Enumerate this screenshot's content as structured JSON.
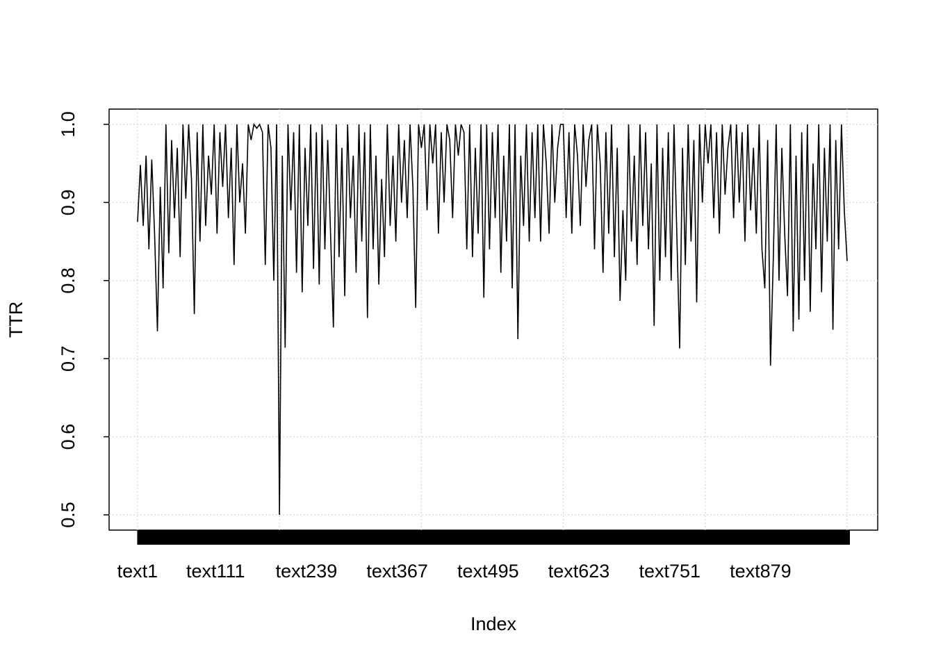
{
  "chart_data": {
    "type": "line",
    "xlabel": "Index",
    "ylabel": "TTR",
    "x": [
      1,
      5,
      9,
      13,
      17,
      21,
      25,
      29,
      33,
      37,
      41,
      45,
      49,
      53,
      57,
      61,
      65,
      69,
      73,
      77,
      81,
      85,
      89,
      93,
      97,
      101,
      105,
      109,
      113,
      117,
      121,
      125,
      129,
      133,
      137,
      141,
      145,
      149,
      153,
      157,
      161,
      165,
      169,
      173,
      177,
      181,
      185,
      189,
      193,
      197,
      201,
      205,
      209,
      213,
      217,
      221,
      225,
      229,
      233,
      237,
      241,
      245,
      249,
      253,
      257,
      261,
      265,
      269,
      273,
      277,
      281,
      285,
      289,
      293,
      297,
      301,
      305,
      309,
      313,
      317,
      321,
      325,
      329,
      333,
      337,
      341,
      345,
      349,
      353,
      357,
      361,
      365,
      369,
      373,
      377,
      381,
      385,
      389,
      393,
      397,
      401,
      405,
      409,
      413,
      417,
      421,
      425,
      429,
      433,
      437,
      441,
      445,
      449,
      453,
      457,
      461,
      465,
      469,
      473,
      477,
      481,
      485,
      489,
      493,
      497,
      501,
      505,
      509,
      513,
      517,
      521,
      525,
      529,
      533,
      537,
      541,
      545,
      549,
      553,
      557,
      561,
      565,
      569,
      573,
      577,
      581,
      585,
      589,
      593,
      597,
      601,
      605,
      609,
      613,
      617,
      621,
      625,
      629,
      633,
      637,
      641,
      645,
      649,
      653,
      657,
      661,
      665,
      669,
      673,
      677,
      681,
      685,
      689,
      693,
      697,
      701,
      705,
      709,
      713,
      717,
      721,
      725,
      729,
      733,
      737,
      741,
      745,
      749,
      753,
      757,
      761,
      765,
      769,
      773,
      777,
      781,
      785,
      789,
      793,
      797,
      801,
      805,
      809,
      813,
      817,
      821,
      825,
      829,
      833,
      837,
      841,
      845,
      849,
      853,
      857,
      861,
      865,
      869,
      873,
      877,
      881,
      885,
      889,
      893,
      897,
      901,
      905,
      909,
      913,
      917,
      921,
      925,
      929,
      933,
      937,
      941,
      945,
      949,
      953,
      957,
      961,
      965,
      969,
      973,
      977,
      981,
      985,
      989,
      993,
      997,
      1001
    ],
    "values": [
      0.875,
      0.948,
      0.87,
      0.96,
      0.84,
      0.955,
      0.86,
      0.735,
      0.92,
      0.79,
      1.0,
      0.835,
      0.98,
      0.88,
      0.97,
      0.83,
      1.0,
      0.905,
      1.0,
      0.93,
      0.757,
      0.99,
      0.85,
      1.0,
      0.87,
      0.96,
      0.91,
      1.0,
      0.86,
      0.99,
      0.92,
      1.0,
      0.88,
      0.97,
      0.82,
      1.0,
      0.9,
      0.95,
      0.86,
      1.0,
      0.98,
      1.0,
      0.995,
      1.0,
      0.99,
      0.82,
      1.0,
      0.97,
      0.8,
      1.0,
      0.5,
      0.96,
      0.714,
      1.0,
      0.89,
      0.99,
      0.81,
      1.0,
      0.785,
      0.97,
      0.87,
      1.0,
      0.815,
      0.99,
      0.795,
      1.0,
      0.84,
      0.98,
      0.86,
      0.74,
      1.0,
      0.83,
      0.97,
      0.78,
      1.0,
      0.88,
      0.96,
      0.81,
      1.0,
      0.85,
      0.99,
      0.752,
      1.0,
      0.84,
      0.96,
      0.795,
      0.93,
      0.83,
      1.0,
      0.87,
      0.96,
      0.85,
      1.0,
      0.9,
      0.98,
      0.88,
      1.0,
      0.92,
      0.765,
      1.0,
      0.97,
      1.0,
      0.89,
      1.0,
      0.95,
      1.0,
      0.86,
      0.99,
      0.9,
      1.0,
      0.98,
      0.88,
      1.0,
      0.96,
      1.0,
      0.99,
      0.84,
      1.0,
      0.83,
      0.97,
      0.86,
      1.0,
      0.778,
      1.0,
      0.84,
      0.99,
      0.88,
      1.0,
      0.81,
      0.96,
      0.85,
      1.0,
      0.79,
      1.0,
      0.725,
      0.96,
      0.87,
      1.0,
      0.85,
      0.99,
      0.88,
      1.0,
      0.85,
      1.0,
      0.95,
      0.86,
      1.0,
      0.9,
      0.97,
      1.0,
      1.0,
      0.88,
      0.99,
      0.86,
      1.0,
      0.96,
      0.87,
      1.0,
      0.92,
      0.98,
      1.0,
      0.84,
      1.0,
      0.95,
      0.81,
      0.99,
      0.86,
      1.0,
      0.83,
      0.97,
      0.774,
      0.89,
      0.8,
      1.0,
      0.85,
      0.96,
      0.82,
      1.0,
      0.87,
      0.99,
      0.84,
      0.95,
      0.742,
      1.0,
      0.8,
      0.97,
      0.83,
      0.99,
      0.8,
      1.0,
      0.86,
      0.713,
      0.97,
      0.82,
      1.0,
      0.85,
      0.98,
      0.772,
      1.0,
      0.9,
      1.0,
      0.95,
      1.0,
      0.88,
      0.99,
      0.86,
      1.0,
      0.91,
      0.97,
      1.0,
      0.88,
      1.0,
      0.9,
      0.99,
      0.85,
      1.0,
      0.89,
      0.97,
      0.86,
      1.0,
      0.84,
      0.79,
      0.98,
      0.691,
      0.83,
      1.0,
      0.8,
      0.97,
      0.86,
      0.78,
      1.0,
      0.735,
      0.96,
      0.75,
      0.99,
      0.8,
      1.0,
      0.76,
      0.95,
      0.84,
      1.0,
      0.785,
      0.97,
      0.85,
      1.0,
      0.737,
      0.98,
      0.84,
      1.0,
      0.89,
      0.825
    ],
    "color": "#000000",
    "xlim": [
      -39.1,
      1044.1
    ],
    "xticks": [
      {
        "value": 1,
        "label": "text1"
      },
      {
        "value": 111,
        "label": "text111"
      },
      {
        "value": 239,
        "label": "text239"
      },
      {
        "value": 367,
        "label": "text367"
      },
      {
        "value": 495,
        "label": "text495"
      },
      {
        "value": 623,
        "label": "text623"
      },
      {
        "value": 751,
        "label": "text751"
      },
      {
        "value": 879,
        "label": "text879"
      }
    ],
    "xgrid": [
      1,
      201,
      401,
      601,
      801,
      1001
    ],
    "ylim": [
      0.4804,
      1.0196
    ],
    "yticks": [
      0.5,
      0.6,
      0.7,
      0.8,
      0.9,
      {
        "value": 1,
        "label": "1.0"
      }
    ],
    "grid": true
  }
}
